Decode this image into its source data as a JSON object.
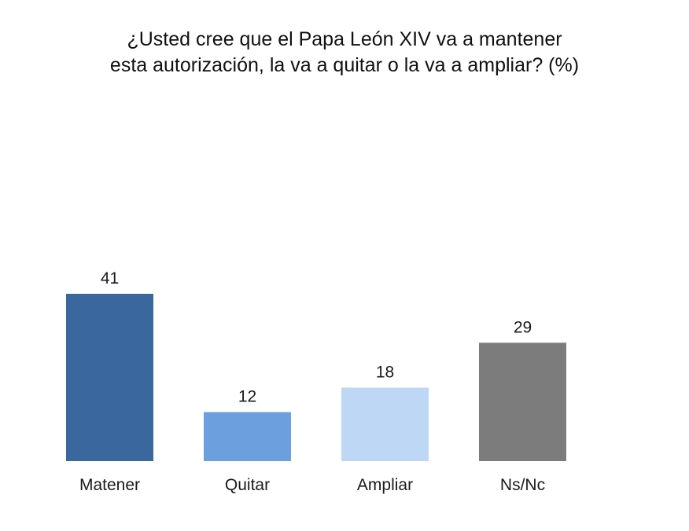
{
  "chart_data": {
    "type": "bar",
    "title_lines": [
      "¿Usted cree que el Papa León XIV va a mantener",
      "esta autorización, la va a quitar o la va a ampliar? (%)"
    ],
    "categories": [
      "Matener",
      "Quitar",
      "Ampliar",
      "Ns/Nc"
    ],
    "values": [
      41,
      12,
      18,
      29
    ],
    "colors": [
      "#3a679e",
      "#6b9fde",
      "#bdd7f5",
      "#7c7c7c"
    ],
    "ylim": [
      0,
      41
    ],
    "grid": false,
    "legend": "none"
  }
}
